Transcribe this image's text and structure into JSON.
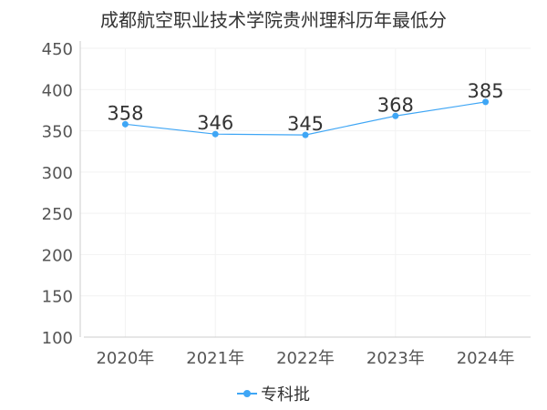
{
  "chart_data": {
    "type": "line",
    "title": "成都航空职业技术学院贵州理科历年最低分",
    "categories": [
      "2020年",
      "2021年",
      "2022年",
      "2023年",
      "2024年"
    ],
    "series": [
      {
        "name": "专科批",
        "values": [
          358,
          346,
          345,
          368,
          385
        ],
        "color": "#3fa6f5"
      }
    ],
    "ylim": [
      100,
      450
    ],
    "yticks": [
      100,
      150,
      200,
      250,
      300,
      350,
      400,
      450
    ],
    "grid": true,
    "legend": "bottom-center",
    "data_labels": true
  }
}
